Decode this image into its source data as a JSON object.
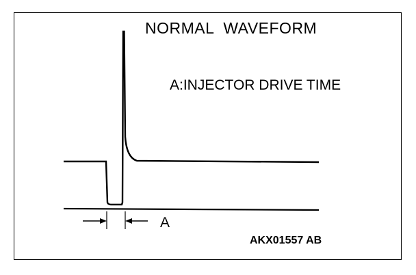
{
  "diagram": {
    "title": "NORMAL  WAVEFORM",
    "legend": "A:INJECTOR DRIVE TIME",
    "dimension_label": "A",
    "figure_code": "AKX01557 AB",
    "line_color": "#000000",
    "background_color": "#ffffff"
  }
}
